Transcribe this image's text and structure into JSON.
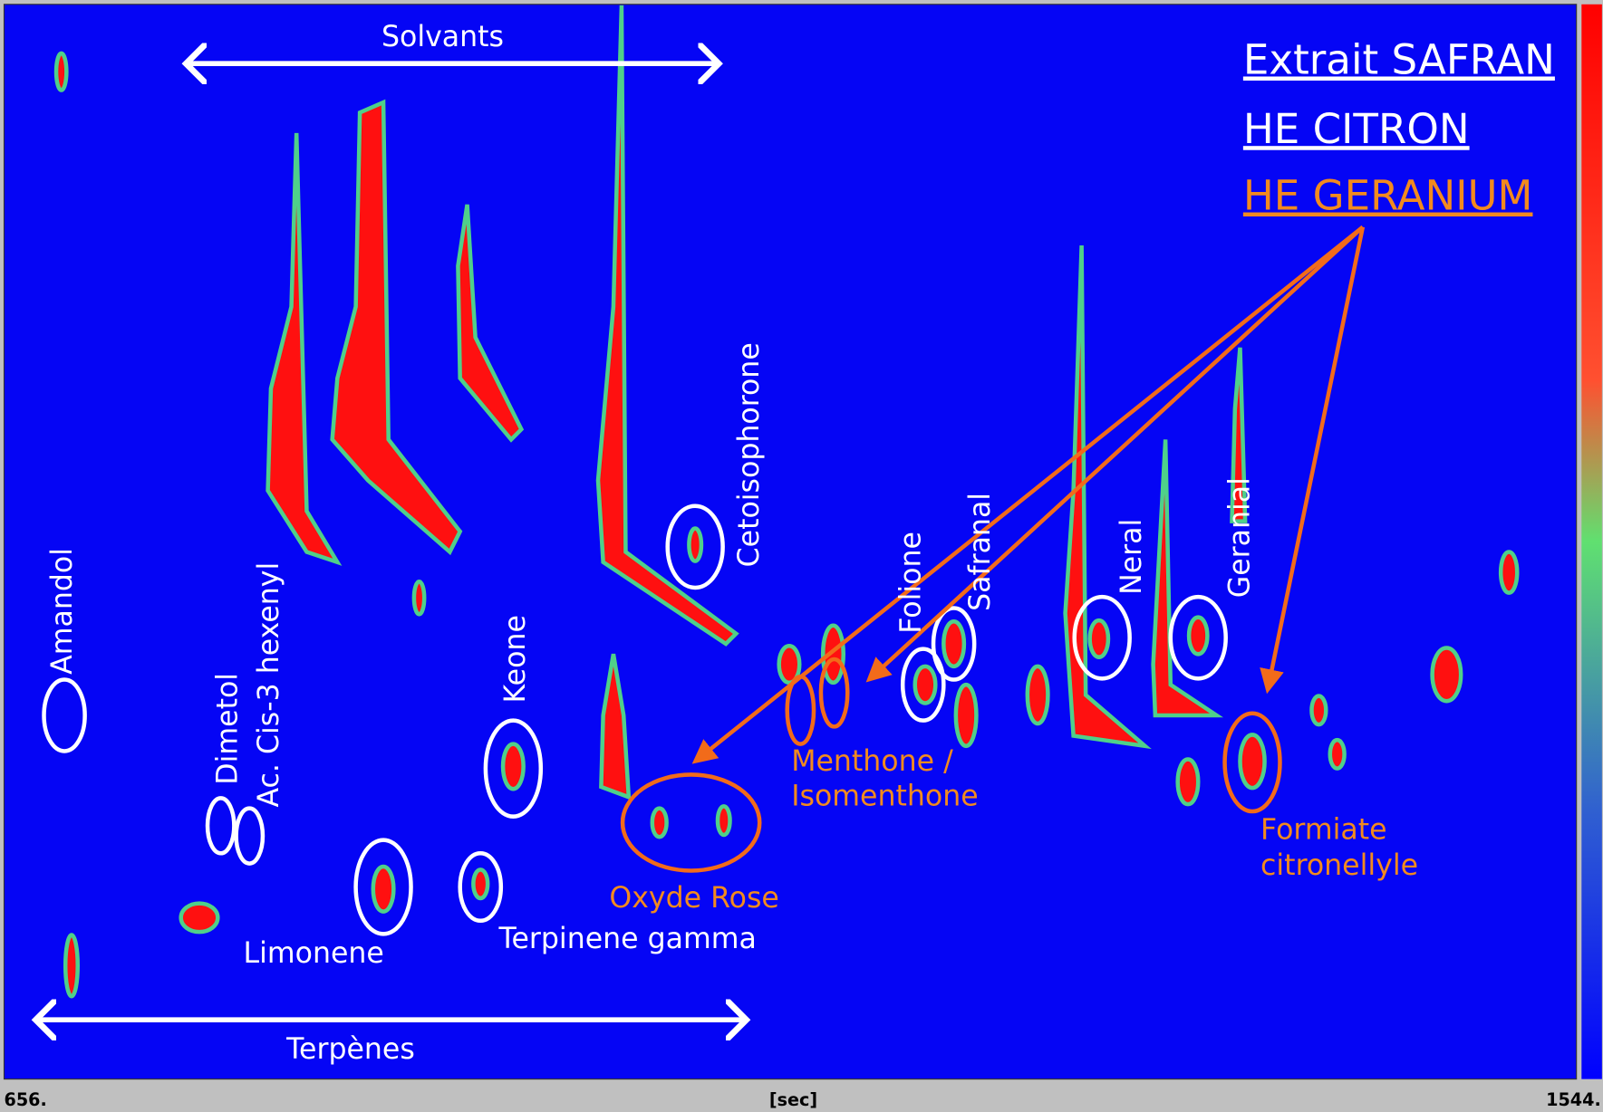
{
  "legend": [
    "Extrait SAFRAN",
    "HE CITRON",
    "HE GERANIUM"
  ],
  "ranges": {
    "solvants": "Solvants",
    "terpenes": "Terpènes"
  },
  "compounds": {
    "amandol": "Amandol",
    "dimetol": "Dimetol",
    "hexenyl": "Ac. Cis-3 hexenyl",
    "keone": "Keone",
    "cetoisophorone": "Cetoisophorone",
    "folione": "Folione",
    "safranal": "Safranal",
    "neral": "Neral",
    "geranial": "Geranial",
    "limonene": "Limonene",
    "terpinene": "Terpinene gamma"
  },
  "geranium_compounds": {
    "menthone": [
      "Menthone /",
      "Isomenthone"
    ],
    "oxyde_rose": "Oxyde Rose",
    "formiate": [
      "Formiate",
      "citronellyle"
    ]
  },
  "axis": {
    "start": "656.",
    "unit": "[sec]",
    "end": "1544."
  }
}
